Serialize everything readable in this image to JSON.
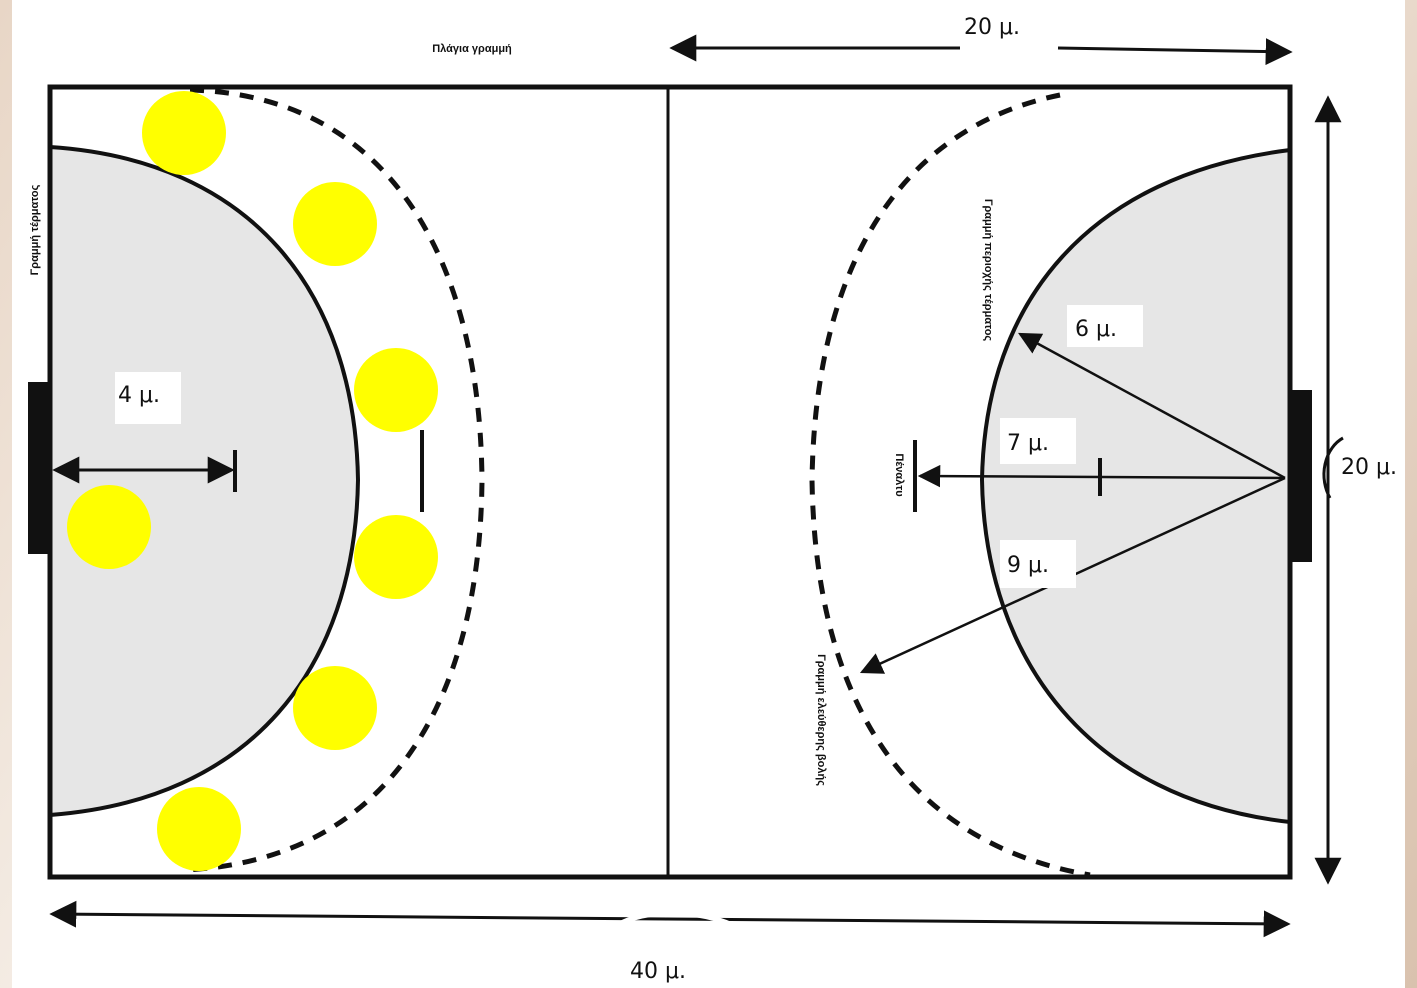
{
  "labels": {
    "side_line": "Πλάγια γραμμή",
    "goal_line": "Γραμμή τέρματος",
    "goal_area_line": "Γραμμή περιοχής τέρματος",
    "free_throw_line": "Γραμμή ελεύθερης βολής",
    "penalty": "Πέναλτυ",
    "half_width": "20 μ.",
    "width": "20 μ.",
    "length": "40 μ.",
    "r6": "6 μ.",
    "r7": "7 μ.",
    "r9": "9 μ.",
    "gk4": "4 μ."
  },
  "colors": {
    "player": "#ffff00",
    "goal_area": "#e6e6e6",
    "line": "#111111"
  },
  "players": [
    "player-1",
    "player-2",
    "player-3",
    "player-4",
    "player-5",
    "player-6",
    "player-7"
  ]
}
